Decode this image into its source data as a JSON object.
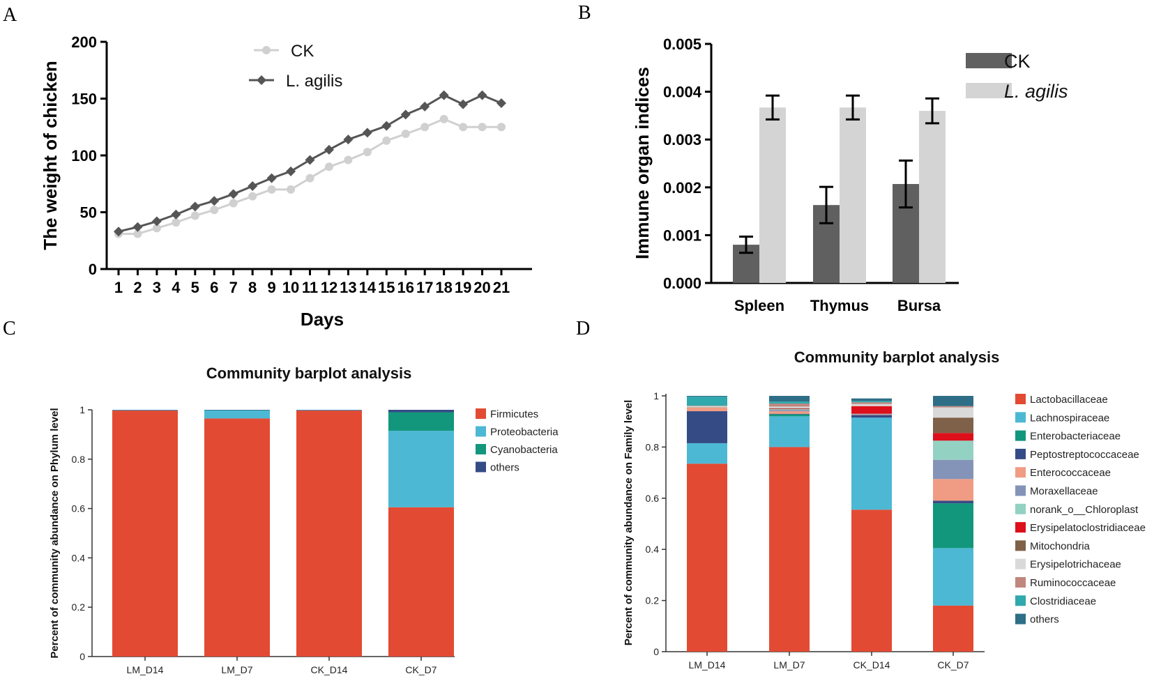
{
  "panels": {
    "A": "A",
    "B": "B",
    "C": "C",
    "D": "D"
  },
  "chart_data": [
    {
      "id": "A",
      "type": "line",
      "title": "",
      "xlabel": "Days",
      "ylabel": "The weight of chicken",
      "ylim": [
        0,
        200
      ],
      "yticks": [
        "0",
        "50",
        "100",
        "150",
        "200"
      ],
      "categories": [
        "1",
        "2",
        "3",
        "4",
        "5",
        "6",
        "7",
        "8",
        "9",
        "10",
        "11",
        "12",
        "13",
        "14",
        "15",
        "16",
        "17",
        "18",
        "19",
        "20",
        "21"
      ],
      "legend_position": "top-center",
      "series": [
        {
          "name": "CK",
          "color": "#d0d0d0",
          "marker": "circle",
          "values": [
            31,
            31,
            36,
            41,
            47,
            52,
            58,
            64,
            70,
            70,
            80,
            90,
            96,
            103,
            113,
            119,
            125,
            132,
            125,
            125,
            125
          ]
        },
        {
          "name": "L. agilis",
          "color": "#555555",
          "marker": "diamond",
          "values": [
            33,
            37,
            42,
            48,
            55,
            60,
            66,
            73,
            80,
            86,
            96,
            105,
            114,
            120,
            126,
            136,
            143,
            153,
            145,
            153,
            146
          ]
        }
      ]
    },
    {
      "id": "B",
      "type": "bar",
      "title": "",
      "xlabel": "",
      "ylabel": "Immune organ indices",
      "ylim": [
        0,
        0.005
      ],
      "yticks": [
        "0.000",
        "0.001",
        "0.002",
        "0.003",
        "0.004",
        "0.005"
      ],
      "categories": [
        "Spleen",
        "Thymus",
        "Bursa"
      ],
      "legend_position": "top-right",
      "series": [
        {
          "name": "CK",
          "color": "#606060",
          "values": [
            0.0008,
            0.00163,
            0.00207
          ],
          "errors": [
            0.00017,
            0.00038,
            0.00049
          ]
        },
        {
          "name": "L. agilis",
          "color": "#d4d4d4",
          "values": [
            0.00367,
            0.00367,
            0.0036
          ],
          "errors": [
            0.00025,
            0.00025,
            0.00026
          ]
        }
      ]
    },
    {
      "id": "C",
      "type": "bar",
      "stacked": true,
      "title": "Community barplot analysis",
      "xlabel": "",
      "ylabel": "Percent of community abundance on Phylum level",
      "ylim": [
        0,
        1
      ],
      "yticks": [
        "0",
        "0.2",
        "0.4",
        "0.6",
        "0.8",
        "1"
      ],
      "categories": [
        "LM_D14",
        "LM_D7",
        "CK_D14",
        "CK_D7"
      ],
      "legend_position": "top-right",
      "series": [
        {
          "name": "Firmicutes",
          "color": "#e34a33",
          "values": [
            0.997,
            0.965,
            0.997,
            0.605
          ]
        },
        {
          "name": "Proteobacteria",
          "color": "#4db8d4",
          "values": [
            0.002,
            0.033,
            0.002,
            0.31
          ]
        },
        {
          "name": "Cyanobacteria",
          "color": "#12977c",
          "values": [
            0.0,
            0.001,
            0.0,
            0.075
          ]
        },
        {
          "name": "others",
          "color": "#344b86",
          "values": [
            0.001,
            0.001,
            0.001,
            0.01
          ]
        }
      ]
    },
    {
      "id": "D",
      "type": "bar",
      "stacked": true,
      "title": "Community barplot analysis",
      "xlabel": "",
      "ylabel": "Percent of community abundance on Family level",
      "ylim": [
        0,
        1
      ],
      "yticks": [
        "0",
        "0.2",
        "0.4",
        "0.6",
        "0.8",
        "1"
      ],
      "categories": [
        "LM_D14",
        "LM_D7",
        "CK_D14",
        "CK_D7"
      ],
      "legend_position": "top-right",
      "series": [
        {
          "name": "Lactobacillaceae",
          "color": "#e34a33",
          "values": [
            0.735,
            0.8,
            0.555,
            0.18
          ]
        },
        {
          "name": "Lachnospiraceae",
          "color": "#4db8d4",
          "values": [
            0.08,
            0.12,
            0.36,
            0.225
          ]
        },
        {
          "name": "Enterobacteriaceae",
          "color": "#12977c",
          "values": [
            0.0,
            0.008,
            0.0,
            0.175
          ]
        },
        {
          "name": "Peptostreptococcaceae",
          "color": "#344b86",
          "values": [
            0.125,
            0.002,
            0.01,
            0.01
          ]
        },
        {
          "name": "Enterococcaceae",
          "color": "#f09c84",
          "values": [
            0.015,
            0.01,
            0.002,
            0.085
          ]
        },
        {
          "name": "Moraxellaceae",
          "color": "#8493b8",
          "values": [
            0.0,
            0.005,
            0.002,
            0.075
          ]
        },
        {
          "name": "norank_o__Chloroplast",
          "color": "#93d1c2",
          "values": [
            0.002,
            0.003,
            0.001,
            0.075
          ]
        },
        {
          "name": "Erysipelatoclostridiaceae",
          "color": "#dc0f1b",
          "values": [
            0.0,
            0.002,
            0.03,
            0.03
          ]
        },
        {
          "name": "Mitochondria",
          "color": "#7e6148",
          "values": [
            0.0,
            0.002,
            0.0,
            0.06
          ]
        },
        {
          "name": "Erysipelotrichaceae",
          "color": "#d9d9d9",
          "values": [
            0.003,
            0.006,
            0.008,
            0.04
          ]
        },
        {
          "name": "Ruminococcaceae",
          "color": "#c0877e",
          "values": [
            0.002,
            0.012,
            0.007,
            0.005
          ]
        },
        {
          "name": "Clostridiaceae",
          "color": "#2fa8ae",
          "values": [
            0.035,
            0.008,
            0.005,
            0.0
          ]
        },
        {
          "name": "others",
          "color": "#2e6e86",
          "values": [
            0.003,
            0.022,
            0.01,
            0.04
          ]
        }
      ]
    }
  ]
}
